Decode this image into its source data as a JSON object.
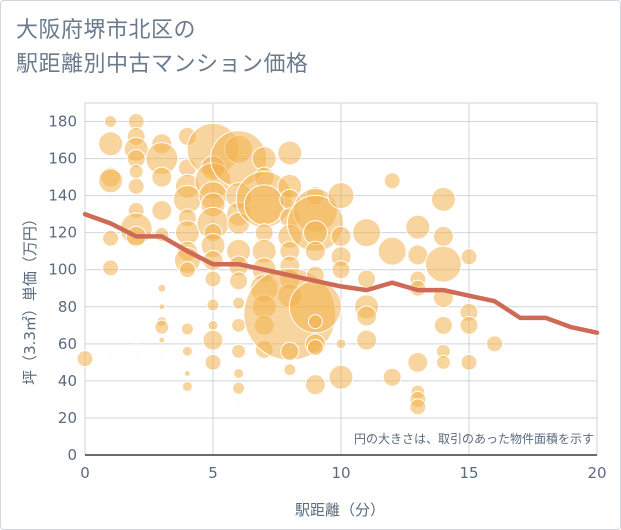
{
  "title_lines": [
    "大阪府堺市北区の",
    "駅距離別中古マンション価格"
  ],
  "chart_data": {
    "type": "scatter",
    "xlabel": "駅距離（分）",
    "ylabel": "坪（3.3㎡）単価（万円）",
    "xlim": [
      0,
      20
    ],
    "ylim": [
      0,
      190
    ],
    "xticks": [
      0,
      5,
      10,
      15,
      20
    ],
    "yticks": [
      0,
      20,
      40,
      60,
      80,
      100,
      120,
      140,
      160,
      180
    ],
    "grid": true,
    "annotation": "円の大きさは、取引のあった物件面積を示す",
    "colors": {
      "bubble": "#f3b24e",
      "bubble_edge": "#ffffff",
      "line": "#cf6a57",
      "grid": "#cdd4dc",
      "axis_text": "#5a6b7d"
    },
    "bubbles": [
      {
        "x": 0,
        "y": 52,
        "r": 8
      },
      {
        "x": 1,
        "y": 180,
        "r": 6
      },
      {
        "x": 1,
        "y": 168,
        "r": 12
      },
      {
        "x": 1,
        "y": 150,
        "r": 10
      },
      {
        "x": 1,
        "y": 148,
        "r": 12
      },
      {
        "x": 1,
        "y": 117,
        "r": 8
      },
      {
        "x": 1,
        "y": 101,
        "r": 8
      },
      {
        "x": 1,
        "y": 62,
        "r": 1
      },
      {
        "x": 1,
        "y": 54,
        "r": 1
      },
      {
        "x": 2,
        "y": 180,
        "r": 8
      },
      {
        "x": 2,
        "y": 172,
        "r": 9
      },
      {
        "x": 2,
        "y": 165,
        "r": 12
      },
      {
        "x": 2,
        "y": 160,
        "r": 9
      },
      {
        "x": 2,
        "y": 153,
        "r": 7
      },
      {
        "x": 2,
        "y": 145,
        "r": 8
      },
      {
        "x": 2,
        "y": 132,
        "r": 8
      },
      {
        "x": 2,
        "y": 122,
        "r": 16
      },
      {
        "x": 2,
        "y": 118,
        "r": 10
      },
      {
        "x": 2,
        "y": 60,
        "r": 1
      },
      {
        "x": 2,
        "y": 54,
        "r": 1
      },
      {
        "x": 3,
        "y": 168,
        "r": 10
      },
      {
        "x": 3,
        "y": 160,
        "r": 16
      },
      {
        "x": 3,
        "y": 150,
        "r": 10
      },
      {
        "x": 3,
        "y": 132,
        "r": 10
      },
      {
        "x": 3,
        "y": 119,
        "r": 7
      },
      {
        "x": 3,
        "y": 90,
        "r": 4
      },
      {
        "x": 3,
        "y": 80,
        "r": 3
      },
      {
        "x": 3,
        "y": 72,
        "r": 5
      },
      {
        "x": 3,
        "y": 69,
        "r": 7
      },
      {
        "x": 3,
        "y": 62,
        "r": 3
      },
      {
        "x": 3,
        "y": 53,
        "r": 1
      },
      {
        "x": 4,
        "y": 172,
        "r": 9
      },
      {
        "x": 4,
        "y": 155,
        "r": 9
      },
      {
        "x": 4,
        "y": 145,
        "r": 12
      },
      {
        "x": 4,
        "y": 138,
        "r": 14
      },
      {
        "x": 4,
        "y": 128,
        "r": 9
      },
      {
        "x": 4,
        "y": 120,
        "r": 12
      },
      {
        "x": 4,
        "y": 110,
        "r": 10
      },
      {
        "x": 4,
        "y": 105,
        "r": 13
      },
      {
        "x": 4,
        "y": 100,
        "r": 8
      },
      {
        "x": 4,
        "y": 68,
        "r": 6
      },
      {
        "x": 4,
        "y": 56,
        "r": 5
      },
      {
        "x": 4,
        "y": 44,
        "r": 3
      },
      {
        "x": 4,
        "y": 37,
        "r": 5
      },
      {
        "x": 5,
        "y": 165,
        "r": 26
      },
      {
        "x": 5,
        "y": 155,
        "r": 12
      },
      {
        "x": 5,
        "y": 148,
        "r": 18
      },
      {
        "x": 5,
        "y": 140,
        "r": 14
      },
      {
        "x": 5,
        "y": 135,
        "r": 12
      },
      {
        "x": 5,
        "y": 125,
        "r": 16
      },
      {
        "x": 5,
        "y": 120,
        "r": 9
      },
      {
        "x": 5,
        "y": 113,
        "r": 12
      },
      {
        "x": 5,
        "y": 105,
        "r": 10
      },
      {
        "x": 5,
        "y": 95,
        "r": 8
      },
      {
        "x": 5,
        "y": 81,
        "r": 6
      },
      {
        "x": 5,
        "y": 70,
        "r": 5
      },
      {
        "x": 5,
        "y": 62,
        "r": 10
      },
      {
        "x": 5,
        "y": 50,
        "r": 8
      },
      {
        "x": 6,
        "y": 165,
        "r": 14
      },
      {
        "x": 6,
        "y": 160,
        "r": 28
      },
      {
        "x": 6,
        "y": 140,
        "r": 13
      },
      {
        "x": 6,
        "y": 130,
        "r": 12
      },
      {
        "x": 6,
        "y": 125,
        "r": 11
      },
      {
        "x": 6,
        "y": 110,
        "r": 12
      },
      {
        "x": 6,
        "y": 102,
        "r": 10
      },
      {
        "x": 6,
        "y": 94,
        "r": 9
      },
      {
        "x": 6,
        "y": 82,
        "r": 6
      },
      {
        "x": 6,
        "y": 70,
        "r": 7
      },
      {
        "x": 6,
        "y": 56,
        "r": 7
      },
      {
        "x": 6,
        "y": 44,
        "r": 5
      },
      {
        "x": 6,
        "y": 36,
        "r": 6
      },
      {
        "x": 6,
        "y": 26,
        "r": 1
      },
      {
        "x": 7,
        "y": 160,
        "r": 12
      },
      {
        "x": 7,
        "y": 150,
        "r": 10
      },
      {
        "x": 7,
        "y": 138,
        "r": 28
      },
      {
        "x": 7,
        "y": 135,
        "r": 20
      },
      {
        "x": 7,
        "y": 120,
        "r": 9
      },
      {
        "x": 7,
        "y": 110,
        "r": 12
      },
      {
        "x": 7,
        "y": 100,
        "r": 12
      },
      {
        "x": 7,
        "y": 90,
        "r": 14
      },
      {
        "x": 7,
        "y": 80,
        "r": 12
      },
      {
        "x": 7,
        "y": 70,
        "r": 10
      },
      {
        "x": 7,
        "y": 57,
        "r": 9
      },
      {
        "x": 8,
        "y": 163,
        "r": 12
      },
      {
        "x": 8,
        "y": 145,
        "r": 12
      },
      {
        "x": 8,
        "y": 138,
        "r": 10
      },
      {
        "x": 8,
        "y": 128,
        "r": 10
      },
      {
        "x": 8,
        "y": 118,
        "r": 12
      },
      {
        "x": 8,
        "y": 110,
        "r": 10
      },
      {
        "x": 8,
        "y": 102,
        "r": 10
      },
      {
        "x": 8,
        "y": 95,
        "r": 10
      },
      {
        "x": 8,
        "y": 86,
        "r": 12
      },
      {
        "x": 8,
        "y": 76,
        "r": 46
      },
      {
        "x": 8,
        "y": 56,
        "r": 9
      },
      {
        "x": 8,
        "y": 46,
        "r": 6
      },
      {
        "x": 9,
        "y": 140,
        "r": 9
      },
      {
        "x": 9,
        "y": 132,
        "r": 22
      },
      {
        "x": 9,
        "y": 125,
        "r": 28
      },
      {
        "x": 9,
        "y": 120,
        "r": 12
      },
      {
        "x": 9,
        "y": 110,
        "r": 10
      },
      {
        "x": 9,
        "y": 97,
        "r": 9
      },
      {
        "x": 9,
        "y": 80,
        "r": 26
      },
      {
        "x": 9,
        "y": 72,
        "r": 7
      },
      {
        "x": 9,
        "y": 60,
        "r": 10
      },
      {
        "x": 9,
        "y": 58,
        "r": 8
      },
      {
        "x": 9,
        "y": 38,
        "r": 10
      },
      {
        "x": 10,
        "y": 140,
        "r": 13
      },
      {
        "x": 10,
        "y": 118,
        "r": 10
      },
      {
        "x": 10,
        "y": 107,
        "r": 10
      },
      {
        "x": 10,
        "y": 100,
        "r": 9
      },
      {
        "x": 10,
        "y": 60,
        "r": 5
      },
      {
        "x": 10,
        "y": 42,
        "r": 12
      },
      {
        "x": 11,
        "y": 120,
        "r": 14
      },
      {
        "x": 11,
        "y": 95,
        "r": 9
      },
      {
        "x": 11,
        "y": 80,
        "r": 12
      },
      {
        "x": 11,
        "y": 75,
        "r": 10
      },
      {
        "x": 11,
        "y": 62,
        "r": 10
      },
      {
        "x": 12,
        "y": 148,
        "r": 8
      },
      {
        "x": 12,
        "y": 110,
        "r": 14
      },
      {
        "x": 12,
        "y": 42,
        "r": 9
      },
      {
        "x": 13,
        "y": 123,
        "r": 12
      },
      {
        "x": 13,
        "y": 108,
        "r": 10
      },
      {
        "x": 13,
        "y": 95,
        "r": 8
      },
      {
        "x": 13,
        "y": 90,
        "r": 8
      },
      {
        "x": 13,
        "y": 50,
        "r": 10
      },
      {
        "x": 13,
        "y": 34,
        "r": 7
      },
      {
        "x": 13,
        "y": 30,
        "r": 8
      },
      {
        "x": 13,
        "y": 26,
        "r": 8
      },
      {
        "x": 14,
        "y": 138,
        "r": 12
      },
      {
        "x": 14,
        "y": 118,
        "r": 10
      },
      {
        "x": 14,
        "y": 103,
        "r": 18
      },
      {
        "x": 14,
        "y": 85,
        "r": 10
      },
      {
        "x": 14,
        "y": 70,
        "r": 9
      },
      {
        "x": 14,
        "y": 56,
        "r": 7
      },
      {
        "x": 14,
        "y": 50,
        "r": 7
      },
      {
        "x": 15,
        "y": 107,
        "r": 8
      },
      {
        "x": 15,
        "y": 77,
        "r": 9
      },
      {
        "x": 15,
        "y": 70,
        "r": 9
      },
      {
        "x": 15,
        "y": 50,
        "r": 8
      },
      {
        "x": 16,
        "y": 60,
        "r": 8
      }
    ],
    "trend_line": {
      "x": [
        0,
        1,
        2,
        3,
        4,
        5,
        6,
        7,
        8,
        9,
        10,
        11,
        12,
        13,
        14,
        15,
        16,
        17,
        18,
        19,
        20
      ],
      "y": [
        130,
        125,
        118,
        118,
        110,
        103,
        103,
        100,
        97,
        94,
        91,
        89,
        93,
        89,
        89,
        86,
        83,
        74,
        74,
        69,
        66
      ]
    }
  }
}
